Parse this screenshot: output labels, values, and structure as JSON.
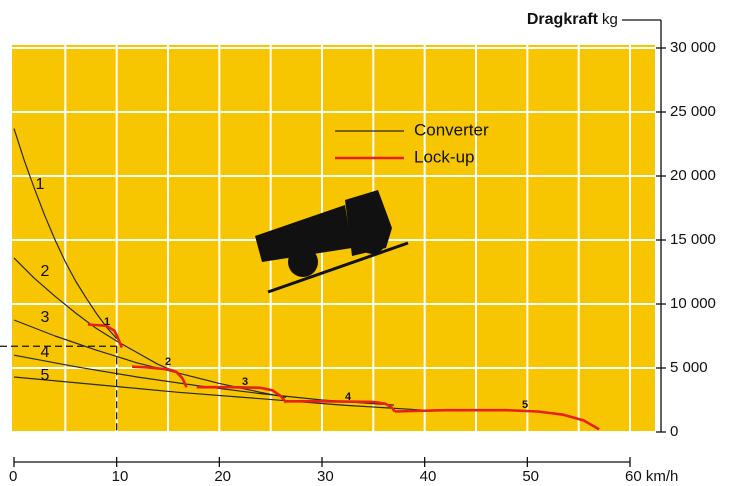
{
  "chart_data": {
    "type": "line",
    "y_label": "Dragkraft",
    "y_unit": "kg",
    "xlim": [
      0,
      60
    ],
    "ylim": [
      0,
      30000
    ],
    "xticks": [
      0,
      10,
      20,
      30,
      40,
      50,
      {
        "value": 60,
        "label": "60 km/h"
      }
    ],
    "yticks": [
      0,
      {
        "value": 5000,
        "label": "5 000"
      },
      {
        "value": 10000,
        "label": "10 000"
      },
      {
        "value": 15000,
        "label": "15 000"
      },
      {
        "value": 20000,
        "label": "20 000"
      },
      {
        "value": 25000,
        "label": "25 000"
      },
      {
        "value": 30000,
        "label": "30 000"
      }
    ],
    "xgrid": [
      5,
      10,
      15,
      20,
      25,
      30,
      35,
      40,
      45,
      50,
      55,
      60
    ],
    "grid": true,
    "background": "#f7c600",
    "marker": {
      "x": 10,
      "y": 6700
    },
    "groups": [
      {
        "name": "Converter",
        "color": "#2a2a2a",
        "curves": [
          {
            "label": "1",
            "x": [
              0,
              1,
              2,
              3,
              4,
              5,
              6,
              7,
              8,
              9,
              10
            ],
            "values": [
              23700,
              21200,
              19000,
              16900,
              15000,
              13300,
              11800,
              10500,
              9300,
              8200,
              7300
            ]
          },
          {
            "label": "2",
            "x": [
              0,
              2,
              4,
              6,
              8,
              10,
              12,
              14,
              16
            ],
            "values": [
              13600,
              12000,
              10600,
              9300,
              8100,
              7100,
              6200,
              5300,
              4600
            ]
          },
          {
            "label": "3",
            "x": [
              0,
              4,
              8,
              12,
              16,
              20,
              24,
              26.5
            ],
            "values": [
              8750,
              7500,
              6400,
              5400,
              4600,
              3800,
              3100,
              2700
            ]
          },
          {
            "label": "4",
            "x": [
              0,
              6,
              12,
              18,
              24,
              30,
              37
            ],
            "values": [
              6000,
              5100,
              4300,
              3600,
              3000,
              2500,
              2100
            ]
          },
          {
            "label": "5",
            "x": [
              0,
              8,
              16,
              24,
              32,
              40
            ],
            "values": [
              4300,
              3700,
              3100,
              2600,
              2100,
              1700
            ]
          }
        ]
      },
      {
        "name": "Lock-up",
        "color": "#e8201a",
        "curves": [
          {
            "label": "1",
            "x": [
              7.2,
              9,
              9.8,
              10.2,
              10.5
            ],
            "values": [
              8400,
              8300,
              7900,
              7200,
              6600
            ]
          },
          {
            "label": "2",
            "x": [
              11.5,
              13,
              15,
              15.8,
              16.4,
              16.8
            ],
            "values": [
              5100,
              5050,
              4900,
              4700,
              4200,
              3500
            ]
          },
          {
            "label": "3",
            "x": [
              17.8,
              21,
              24,
              25.2,
              26,
              26.5
            ],
            "values": [
              3500,
              3500,
              3450,
              3250,
              2800,
              2300
            ]
          },
          {
            "label": "4",
            "x": [
              26.5,
              30,
              35,
              36.2,
              36.8,
              37.1
            ],
            "values": [
              2400,
              2400,
              2350,
              2200,
              1900,
              1600
            ]
          },
          {
            "label": "5",
            "x": [
              37.1,
              42,
              48,
              51,
              53.5,
              55.5,
              57
            ],
            "values": [
              1600,
              1700,
              1700,
              1600,
              1350,
              900,
              200
            ]
          }
        ]
      }
    ]
  }
}
